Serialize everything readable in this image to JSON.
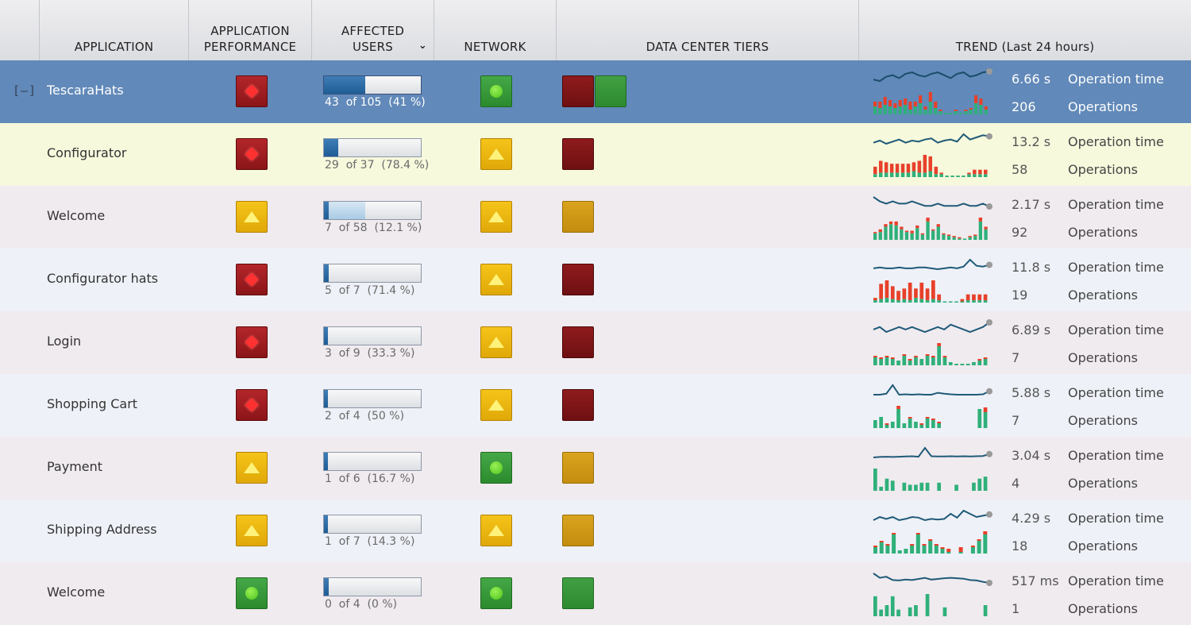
{
  "headers": {
    "application": "APPLICATION",
    "app_perf": "APPLICATION\nPERFORMANCE",
    "affected": "AFFECTED\nUSERS",
    "network": "NETWORK",
    "tiers": "DATA CENTER TIERS",
    "trend": "TREND (Last 24 hours)"
  },
  "expander": "[–]",
  "colors": {
    "red": "#e8402a",
    "green": "#2fb07a",
    "line": "#1f5a78",
    "selected_row": "#6189b9"
  },
  "rows": [
    {
      "name": "TescaraHats",
      "style": "sel",
      "perf": "red",
      "network": "green",
      "tiers": [
        "red",
        "green"
      ],
      "affected": {
        "count": 43,
        "total": 105,
        "pct": 0.41,
        "text": "43  of 105  (41 %)"
      },
      "op_time": "6.66 s",
      "op_time_label": "Operation time",
      "ops": "206",
      "ops_label": "Operations",
      "trend_line": [
        6.1,
        6.0,
        6.3,
        6.4,
        6.2,
        6.5,
        6.6,
        6.4,
        6.3,
        6.5,
        6.6,
        6.4,
        6.2,
        6.5,
        6.6,
        6.3,
        6.4,
        6.6,
        6.66
      ],
      "trend_bars": [
        {
          "g": 5,
          "r": 3
        },
        {
          "g": 4,
          "r": 4
        },
        {
          "g": 6,
          "r": 5
        },
        {
          "g": 5,
          "r": 4
        },
        {
          "g": 4,
          "r": 3
        },
        {
          "g": 5,
          "r": 4
        },
        {
          "g": 6,
          "r": 4
        },
        {
          "g": 3,
          "r": 5
        },
        {
          "g": 5,
          "r": 3
        },
        {
          "g": 7,
          "r": 5
        },
        {
          "g": 3,
          "r": 2
        },
        {
          "g": 8,
          "r": 6
        },
        {
          "g": 4,
          "r": 4
        },
        {
          "g": 2,
          "r": 1
        },
        {
          "g": 1,
          "r": 0
        },
        {
          "g": 1,
          "r": 0
        },
        {
          "g": 2,
          "r": 1
        },
        {
          "g": 1,
          "r": 0
        },
        {
          "g": 2,
          "r": 1
        },
        {
          "g": 3,
          "r": 1
        },
        {
          "g": 7,
          "r": 5
        },
        {
          "g": 6,
          "r": 4
        },
        {
          "g": 3,
          "r": 2
        }
      ]
    },
    {
      "name": "Configurator",
      "style": "y",
      "perf": "red",
      "network": "yellow",
      "tiers": [
        "red"
      ],
      "affected": {
        "count": 29,
        "total": 37,
        "pct": 0.15,
        "text": "29  of 37  (78.4 %)"
      },
      "op_time": "13.2 s",
      "op_time_label": "Operation time",
      "ops": "58",
      "ops_label": "Operations",
      "trend_line": [
        12.6,
        12.8,
        12.5,
        12.7,
        12.9,
        12.6,
        12.8,
        12.7,
        12.9,
        13.0,
        12.6,
        12.8,
        12.9,
        12.7,
        13.4,
        12.9,
        13.1,
        13.3,
        13.2
      ],
      "trend_bars": [
        {
          "g": 2,
          "r": 5
        },
        {
          "g": 3,
          "r": 8
        },
        {
          "g": 3,
          "r": 7
        },
        {
          "g": 3,
          "r": 6
        },
        {
          "g": 3,
          "r": 6
        },
        {
          "g": 3,
          "r": 6
        },
        {
          "g": 3,
          "r": 6
        },
        {
          "g": 4,
          "r": 6
        },
        {
          "g": 3,
          "r": 8
        },
        {
          "g": 3,
          "r": 12
        },
        {
          "g": 4,
          "r": 10
        },
        {
          "g": 2,
          "r": 5
        },
        {
          "g": 2,
          "r": 1
        },
        {
          "g": 1,
          "r": 0
        },
        {
          "g": 1,
          "r": 0
        },
        {
          "g": 1,
          "r": 0
        },
        {
          "g": 1,
          "r": 0
        },
        {
          "g": 2,
          "r": 1
        },
        {
          "g": 2,
          "r": 3
        },
        {
          "g": 2,
          "r": 3
        },
        {
          "g": 2,
          "r": 3
        }
      ]
    },
    {
      "name": "Welcome",
      "style": "p",
      "perf": "yellow",
      "network": "yellow",
      "tiers": [
        "gold"
      ],
      "affected": {
        "count": 7,
        "total": 58,
        "pct": 0.43,
        "dark": 0.05,
        "text": "7  of 58  (12.1 %)"
      },
      "op_time": "2.17 s",
      "op_time_label": "Operation time",
      "ops": "92",
      "ops_label": "Operations",
      "trend_line": [
        2.6,
        2.4,
        2.3,
        2.4,
        2.3,
        2.3,
        2.4,
        2.3,
        2.2,
        2.2,
        2.3,
        2.2,
        2.2,
        2.2,
        2.3,
        2.2,
        2.2,
        2.3,
        2.17
      ],
      "trend_bars": [
        {
          "g": 5,
          "r": 1
        },
        {
          "g": 6,
          "r": 2
        },
        {
          "g": 10,
          "r": 2
        },
        {
          "g": 12,
          "r": 2
        },
        {
          "g": 11,
          "r": 3
        },
        {
          "g": 8,
          "r": 2
        },
        {
          "g": 6,
          "r": 1
        },
        {
          "g": 5,
          "r": 2
        },
        {
          "g": 9,
          "r": 2
        },
        {
          "g": 4,
          "r": 1
        },
        {
          "g": 14,
          "r": 3
        },
        {
          "g": 7,
          "r": 1
        },
        {
          "g": 10,
          "r": 2
        },
        {
          "g": 4,
          "r": 1
        },
        {
          "g": 3,
          "r": 1
        },
        {
          "g": 2,
          "r": 1
        },
        {
          "g": 1,
          "r": 1
        },
        {
          "g": 1,
          "r": 0
        },
        {
          "g": 2,
          "r": 1
        },
        {
          "g": 3,
          "r": 1
        },
        {
          "g": 14,
          "r": 3
        },
        {
          "g": 8,
          "r": 2
        }
      ]
    },
    {
      "name": "Configurator hats",
      "style": "b",
      "perf": "red",
      "network": "yellow",
      "tiers": [
        "red"
      ],
      "affected": {
        "count": 5,
        "total": 7,
        "pct": 0.05,
        "text": "5  of 7  (71.4 %)"
      },
      "op_time": "11.8 s",
      "op_time_label": "Operation time",
      "ops": "19",
      "ops_label": "Operations",
      "trend_line": [
        11.4,
        11.5,
        11.4,
        11.4,
        11.5,
        11.4,
        11.4,
        11.5,
        11.5,
        11.4,
        11.3,
        11.4,
        11.5,
        11.4,
        11.6,
        12.4,
        11.7,
        11.6,
        11.8
      ],
      "trend_bars": [
        {
          "g": 2,
          "r": 2
        },
        {
          "g": 3,
          "r": 13
        },
        {
          "g": 4,
          "r": 15
        },
        {
          "g": 3,
          "r": 11
        },
        {
          "g": 2,
          "r": 8
        },
        {
          "g": 3,
          "r": 9
        },
        {
          "g": 2,
          "r": 15
        },
        {
          "g": 4,
          "r": 8
        },
        {
          "g": 3,
          "r": 14
        },
        {
          "g": 2,
          "r": 10
        },
        {
          "g": 3,
          "r": 16
        },
        {
          "g": 2,
          "r": 5
        },
        {
          "g": 1,
          "r": 0
        },
        {
          "g": 1,
          "r": 0
        },
        {
          "g": 1,
          "r": 0
        },
        {
          "g": 1,
          "r": 2
        },
        {
          "g": 2,
          "r": 5
        },
        {
          "g": 2,
          "r": 5
        },
        {
          "g": 2,
          "r": 5
        },
        {
          "g": 2,
          "r": 5
        }
      ]
    },
    {
      "name": "Login",
      "style": "p",
      "perf": "red",
      "network": "yellow",
      "tiers": [
        "red"
      ],
      "affected": {
        "count": 3,
        "total": 9,
        "pct": 0.03,
        "text": "3  of 9  (33.3 %)"
      },
      "op_time": "6.89 s",
      "op_time_label": "Operation time",
      "ops": "7",
      "ops_label": "Operations",
      "trend_line": [
        6.6,
        6.7,
        6.5,
        6.6,
        6.7,
        6.6,
        6.7,
        6.6,
        6.5,
        6.6,
        6.7,
        6.6,
        6.8,
        6.7,
        6.6,
        6.5,
        6.6,
        6.7,
        6.89
      ],
      "trend_bars": [
        {
          "g": 5,
          "r": 1
        },
        {
          "g": 4,
          "r": 1
        },
        {
          "g": 5,
          "r": 1
        },
        {
          "g": 4,
          "r": 1
        },
        {
          "g": 3,
          "r": 0
        },
        {
          "g": 6,
          "r": 1
        },
        {
          "g": 3,
          "r": 1
        },
        {
          "g": 5,
          "r": 1
        },
        {
          "g": 4,
          "r": 0
        },
        {
          "g": 6,
          "r": 1
        },
        {
          "g": 5,
          "r": 1
        },
        {
          "g": 12,
          "r": 2
        },
        {
          "g": 5,
          "r": 1
        },
        {
          "g": 2,
          "r": 0
        },
        {
          "g": 1,
          "r": 0
        },
        {
          "g": 1,
          "r": 0
        },
        {
          "g": 1,
          "r": 0
        },
        {
          "g": 2,
          "r": 0
        },
        {
          "g": 3,
          "r": 1
        },
        {
          "g": 4,
          "r": 1
        }
      ]
    },
    {
      "name": "Shopping Cart",
      "style": "b",
      "perf": "red",
      "network": "yellow",
      "tiers": [
        "red"
      ],
      "affected": {
        "count": 2,
        "total": 4,
        "pct": 0.03,
        "text": "2  of 4  (50 %)"
      },
      "op_time": "5.88 s",
      "op_time_label": "Operation time",
      "ops": "7",
      "ops_label": "Operations",
      "trend_line": [
        5.7,
        5.7,
        5.75,
        6.2,
        5.7,
        5.72,
        5.7,
        5.72,
        5.7,
        5.7,
        5.8,
        5.75,
        5.72,
        5.7,
        5.7,
        5.7,
        5.7,
        5.72,
        5.88
      ],
      "trend_bars": [
        {
          "g": 5,
          "r": 0
        },
        {
          "g": 7,
          "r": 0
        },
        {
          "g": 2,
          "r": 1
        },
        {
          "g": 4,
          "r": 0
        },
        {
          "g": 12,
          "r": 2
        },
        {
          "g": 3,
          "r": 0
        },
        {
          "g": 6,
          "r": 1
        },
        {
          "g": 4,
          "r": 0
        },
        {
          "g": 2,
          "r": 1
        },
        {
          "g": 6,
          "r": 1
        },
        {
          "g": 5,
          "r": 1
        },
        {
          "g": 3,
          "r": 1
        },
        {
          "g": 0,
          "r": 0
        },
        {
          "g": 0,
          "r": 0
        },
        {
          "g": 0,
          "r": 0
        },
        {
          "g": 0,
          "r": 0
        },
        {
          "g": 0,
          "r": 0
        },
        {
          "g": 0,
          "r": 0
        },
        {
          "g": 12,
          "r": 0
        },
        {
          "g": 10,
          "r": 3
        }
      ]
    },
    {
      "name": "Payment",
      "style": "p",
      "perf": "yellow",
      "network": "green",
      "tiers": [
        "gold"
      ],
      "affected": {
        "count": 1,
        "total": 6,
        "pct": 0.03,
        "text": "1  of 6  (16.7 %)"
      },
      "op_time": "3.04 s",
      "op_time_label": "Operation time",
      "ops": "4",
      "ops_label": "Operations",
      "trend_line": [
        2.9,
        2.92,
        2.93,
        2.92,
        2.93,
        2.94,
        2.95,
        2.93,
        3.3,
        2.95,
        2.94,
        2.94,
        2.95,
        2.94,
        2.95,
        2.94,
        2.95,
        2.96,
        3.04
      ],
      "trend_bars": [
        {
          "g": 11,
          "r": 0
        },
        {
          "g": 2,
          "r": 0
        },
        {
          "g": 6,
          "r": 0
        },
        {
          "g": 5,
          "r": 0
        },
        {
          "g": 0,
          "r": 0
        },
        {
          "g": 4,
          "r": 0
        },
        {
          "g": 3,
          "r": 0
        },
        {
          "g": 3,
          "r": 0
        },
        {
          "g": 4,
          "r": 0
        },
        {
          "g": 4,
          "r": 0
        },
        {
          "g": 0,
          "r": 0
        },
        {
          "g": 4,
          "r": 0
        },
        {
          "g": 0,
          "r": 0
        },
        {
          "g": 0,
          "r": 0
        },
        {
          "g": 3,
          "r": 0
        },
        {
          "g": 0,
          "r": 0
        },
        {
          "g": 0,
          "r": 0
        },
        {
          "g": 4,
          "r": 0
        },
        {
          "g": 6,
          "r": 0
        },
        {
          "g": 7,
          "r": 0
        }
      ]
    },
    {
      "name": "Shipping Address",
      "style": "b",
      "perf": "yellow",
      "network": "yellow",
      "tiers": [
        "gold"
      ],
      "affected": {
        "count": 1,
        "total": 7,
        "pct": 0.03,
        "text": "1  of 7  (14.3 %)"
      },
      "op_time": "4.29 s",
      "op_time_label": "Operation time",
      "ops": "18",
      "ops_label": "Operations",
      "trend_line": [
        4.2,
        4.25,
        4.22,
        4.25,
        4.2,
        4.22,
        4.25,
        4.24,
        4.2,
        4.22,
        4.21,
        4.22,
        4.3,
        4.24,
        4.35,
        4.3,
        4.25,
        4.27,
        4.29
      ],
      "trend_bars": [
        {
          "g": 4,
          "r": 1
        },
        {
          "g": 7,
          "r": 1
        },
        {
          "g": 5,
          "r": 1
        },
        {
          "g": 12,
          "r": 1
        },
        {
          "g": 2,
          "r": 0
        },
        {
          "g": 3,
          "r": 0
        },
        {
          "g": 5,
          "r": 1
        },
        {
          "g": 12,
          "r": 1
        },
        {
          "g": 5,
          "r": 1
        },
        {
          "g": 8,
          "r": 1
        },
        {
          "g": 5,
          "r": 1
        },
        {
          "g": 3,
          "r": 1
        },
        {
          "g": 1,
          "r": 2
        },
        {
          "g": 0,
          "r": 0
        },
        {
          "g": 1,
          "r": 3
        },
        {
          "g": 0,
          "r": 0
        },
        {
          "g": 4,
          "r": 1
        },
        {
          "g": 8,
          "r": 1
        },
        {
          "g": 12,
          "r": 2
        }
      ]
    },
    {
      "name": "Welcome",
      "style": "p",
      "perf": "green",
      "network": "green",
      "tiers": [
        "green"
      ],
      "affected": {
        "count": 0,
        "total": 4,
        "pct": 0.05,
        "text": "0  of 4  (0 %)"
      },
      "op_time": "517 ms",
      "op_time_label": "Operation time",
      "ops": "1",
      "ops_label": "Operations",
      "trend_line": [
        560,
        540,
        545,
        530,
        528,
        532,
        530,
        535,
        540,
        532,
        535,
        538,
        540,
        538,
        536,
        530,
        528,
        522,
        517
      ],
      "trend_bars": [
        {
          "g": 9,
          "r": 0
        },
        {
          "g": 3,
          "r": 0
        },
        {
          "g": 5,
          "r": 0
        },
        {
          "g": 9,
          "r": 0
        },
        {
          "g": 3,
          "r": 0
        },
        {
          "g": 0,
          "r": 0
        },
        {
          "g": 4,
          "r": 0
        },
        {
          "g": 5,
          "r": 0
        },
        {
          "g": 0,
          "r": 0
        },
        {
          "g": 10,
          "r": 0
        },
        {
          "g": 0,
          "r": 0
        },
        {
          "g": 0,
          "r": 0
        },
        {
          "g": 4,
          "r": 0
        },
        {
          "g": 0,
          "r": 0
        },
        {
          "g": 0,
          "r": 0
        },
        {
          "g": 0,
          "r": 0
        },
        {
          "g": 0,
          "r": 0
        },
        {
          "g": 0,
          "r": 0
        },
        {
          "g": 0,
          "r": 0
        },
        {
          "g": 5,
          "r": 0
        }
      ]
    }
  ]
}
